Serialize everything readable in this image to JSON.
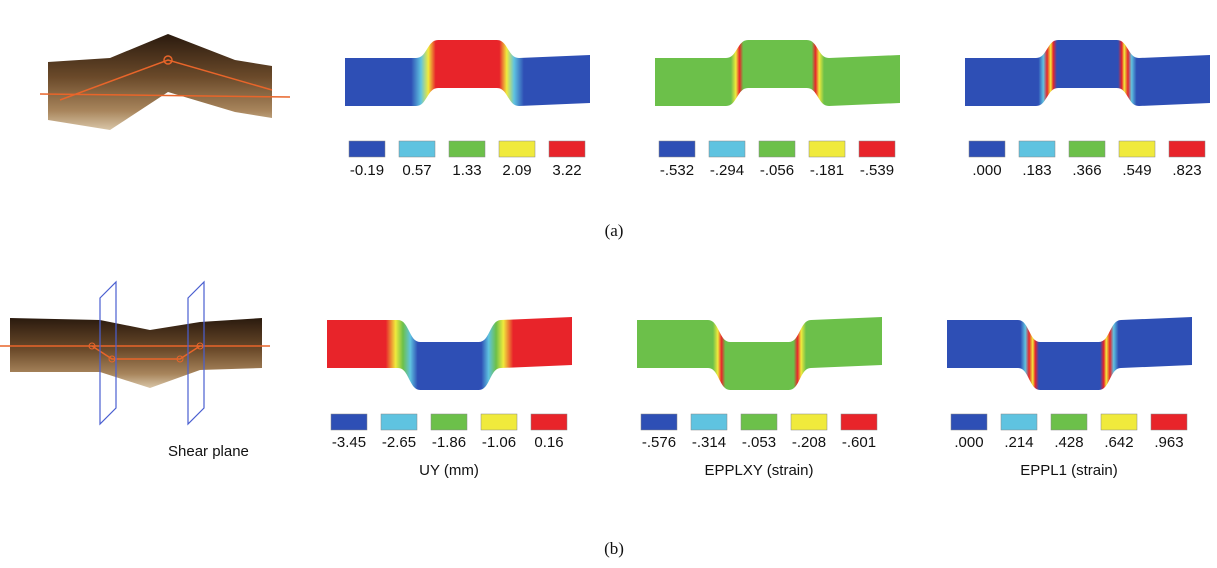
{
  "panels": [
    {
      "label": "(a)",
      "plots": [
        {
          "legend": [
            "-0.19",
            "0.57",
            "1.33",
            "2.09",
            "3.22"
          ]
        },
        {
          "legend": [
            "-.532",
            "-.294",
            "-.056",
            "-.181",
            "-.539"
          ]
        },
        {
          "legend": [
            ".000",
            ".183",
            ".366",
            ".549",
            ".823"
          ]
        }
      ]
    },
    {
      "label": "(b)",
      "photo_label": "Shear plane",
      "plots": [
        {
          "caption": "UY (mm)",
          "legend": [
            "-3.45",
            "-2.65",
            "-1.86",
            "-1.06",
            "0.16"
          ]
        },
        {
          "caption": "EPPLXY (strain)",
          "legend": [
            "-.576",
            "-.314",
            "-.053",
            "-.208",
            "-.601"
          ]
        },
        {
          "caption": "EPPL1 (strain)",
          "legend": [
            ".000",
            ".214",
            ".428",
            ".642",
            ".963"
          ]
        }
      ]
    }
  ]
}
